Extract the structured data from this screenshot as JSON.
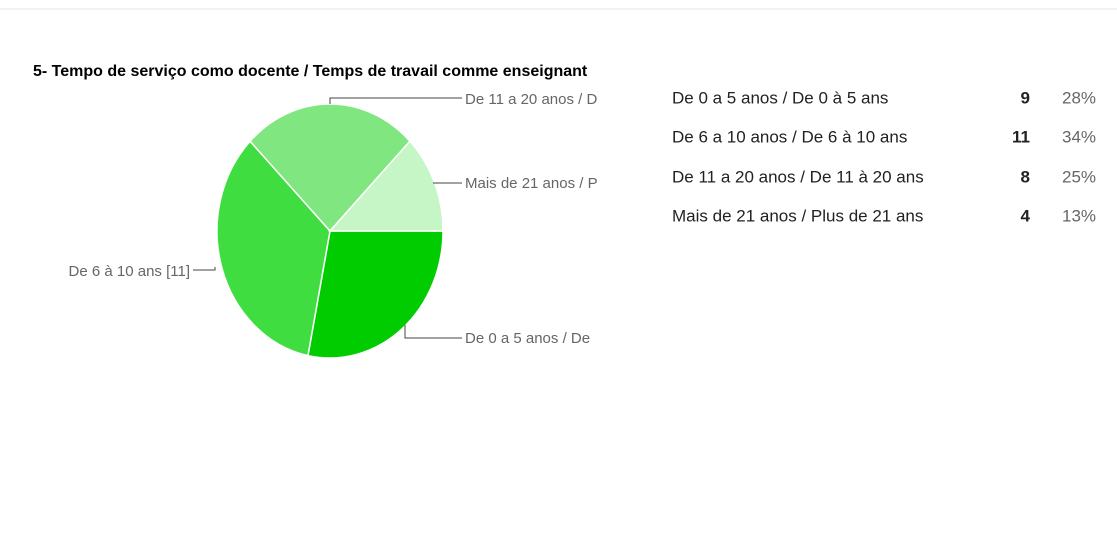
{
  "chart_data": {
    "type": "pie",
    "title": "5- Tempo de serviço como docente / Temps de travail comme enseignant",
    "categories": [
      "De 0 a 5 anos / De 0 à 5 ans",
      "De 6 a 10 anos / De 6 à 10 ans",
      "De 11 a 20 anos / De 11 à 20 ans",
      "Mais de 21 anos / Plus de 21 ans"
    ],
    "values": [
      9,
      11,
      8,
      4
    ],
    "percentages": [
      28,
      34,
      25,
      13
    ],
    "percentage_labels": [
      "28%",
      "34%",
      "25%",
      "13%"
    ],
    "slice_labels": [
      "De 0 a 5 anos / De",
      "De 6 à 10 ans [11]",
      "De 11 a 20 anos / D",
      "Mais de 21 anos / P"
    ],
    "colors": [
      "#00cc00",
      "#40dd40",
      "#80e680",
      "#c6f5c6"
    ]
  }
}
